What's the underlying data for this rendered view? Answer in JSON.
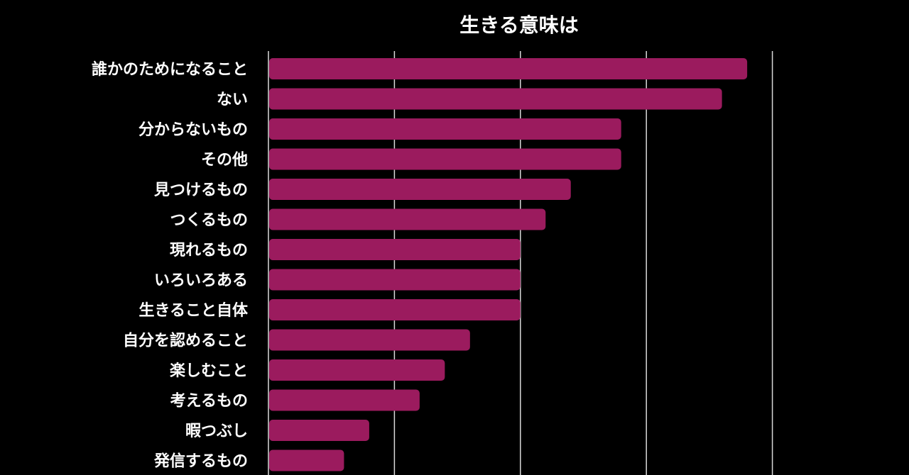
{
  "chart_data": {
    "type": "bar",
    "orientation": "horizontal",
    "title": "生きる意味は",
    "xlabel": "",
    "ylabel": "",
    "categories": [
      "誰かのためになること",
      "ない",
      "分からないもの",
      "その他",
      "見つけるもの",
      "つくるもの",
      "現れるもの",
      "いろいろある",
      "生きること自体",
      "自分を認めること",
      "楽しむこと",
      "考えるもの",
      "暇つぶし",
      "発信するもの"
    ],
    "values": [
      19,
      18,
      14,
      14,
      12,
      11,
      10,
      10,
      10,
      8,
      7,
      6,
      4,
      3
    ],
    "xlim": [
      0,
      25
    ],
    "gridlines_at": [
      0,
      5,
      10,
      15,
      20
    ],
    "grid": true,
    "tick_labels_visible": false,
    "bar_color": "#9b1b5e",
    "background_color": "#000000",
    "text_color": "#ffffff",
    "grid_color": "#d9d9d9"
  }
}
